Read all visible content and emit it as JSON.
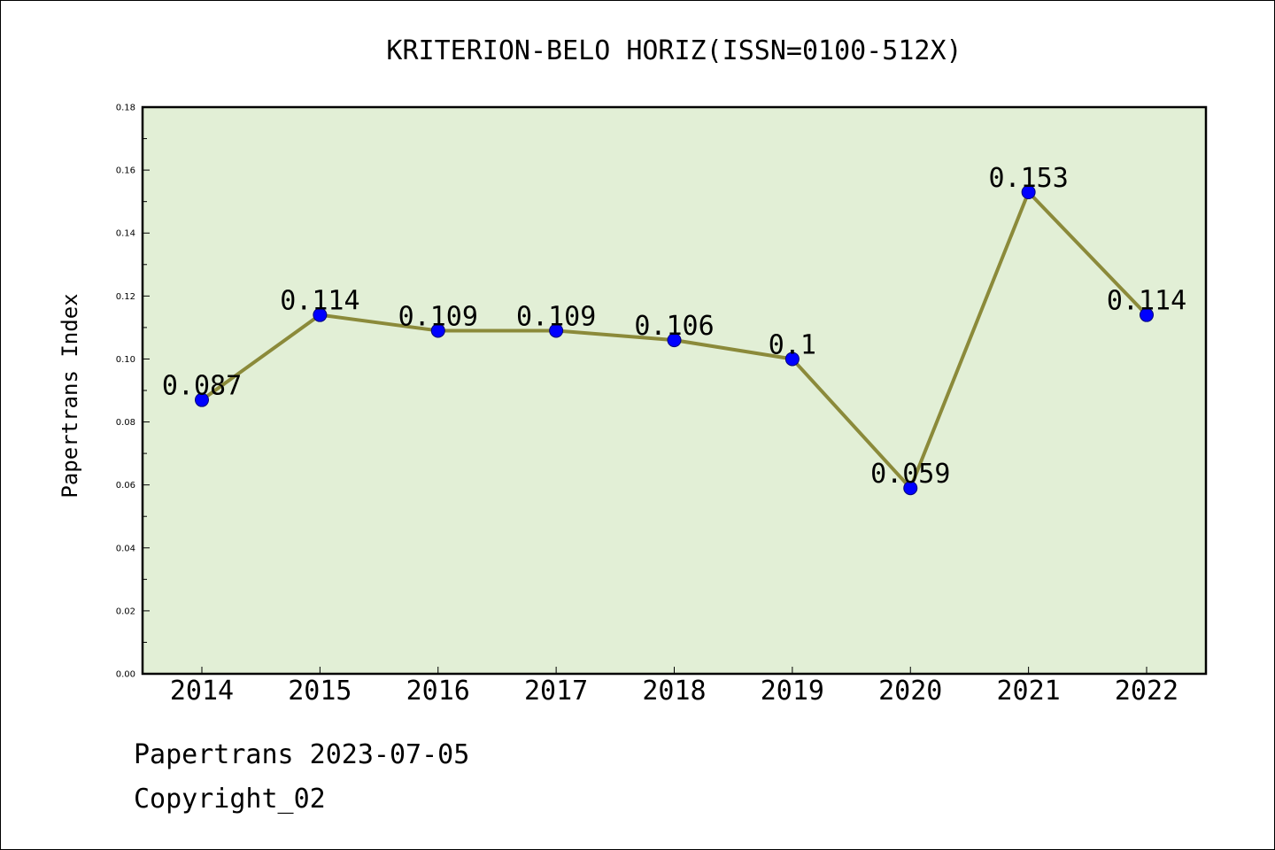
{
  "chart_data": {
    "type": "line",
    "title": "KRITERION-BELO HORIZ(ISSN=0100-512X)",
    "xlabel": "",
    "ylabel": "Papertrans Index",
    "categories": [
      "2014",
      "2015",
      "2016",
      "2017",
      "2018",
      "2019",
      "2020",
      "2021",
      "2022"
    ],
    "series": [
      {
        "values": [
          0.087,
          0.114,
          0.109,
          0.109,
          0.106,
          0.1,
          0.059,
          0.153,
          0.114
        ],
        "labels": [
          "0.087",
          "0.114",
          "0.109",
          "0.109",
          "0.106",
          "0.1",
          "0.059",
          "0.153",
          "0.114"
        ]
      }
    ],
    "ylim": [
      0,
      0.18
    ],
    "yticks": [
      "0.00",
      "0.02",
      "0.04",
      "0.06",
      "0.08",
      "0.10",
      "0.12",
      "0.14",
      "0.16",
      "0.18"
    ],
    "grid": false,
    "legend": "none"
  },
  "colors": {
    "plot_background": "#e2efd6",
    "line": "#8b8a3a",
    "marker": "#0000ff",
    "frame": "#000000"
  },
  "footer": {
    "line1": "Papertrans 2023-07-05",
    "line2": "Copyright_02"
  }
}
